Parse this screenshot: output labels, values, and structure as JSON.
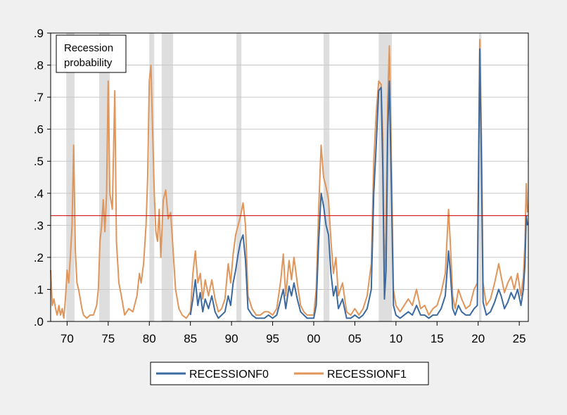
{
  "chart_data": {
    "type": "line",
    "annotation": [
      "Recession",
      "probability"
    ],
    "xlim": [
      1968.0,
      2026.1
    ],
    "ylim": [
      0,
      0.9
    ],
    "x_ticks": [
      1970,
      1975,
      1980,
      1985,
      1990,
      1995,
      2000,
      2005,
      2010,
      2015,
      2020,
      2025
    ],
    "x_tick_labels": [
      "70",
      "75",
      "80",
      "85",
      "90",
      "95",
      "00",
      "05",
      "10",
      "15",
      "20",
      "25"
    ],
    "y_ticks": [
      0,
      0.1,
      0.2,
      0.3,
      0.4,
      0.5,
      0.6,
      0.7,
      0.8,
      0.9
    ],
    "y_tick_labels": [
      ".0",
      ".1",
      ".2",
      ".3",
      ".4",
      ".5",
      ".6",
      ".7",
      ".8",
      ".9"
    ],
    "threshold": {
      "value": 0.33,
      "color": "#cc0000"
    },
    "recession_periods": [
      [
        1969.9,
        1970.9
      ],
      [
        1973.9,
        1975.2
      ],
      [
        1980.0,
        1980.6
      ],
      [
        1981.5,
        1982.9
      ],
      [
        1990.6,
        1991.2
      ],
      [
        2001.2,
        2001.9
      ],
      [
        2007.9,
        2009.5
      ],
      [
        2020.1,
        2020.4
      ]
    ],
    "series": [
      {
        "name": "RECESSIONF0",
        "color": "#3a6aa0",
        "points": [
          [
            1985.0,
            0.02
          ],
          [
            1985.3,
            0.07
          ],
          [
            1985.6,
            0.13
          ],
          [
            1985.9,
            0.05
          ],
          [
            1986.2,
            0.09
          ],
          [
            1986.5,
            0.03
          ],
          [
            1986.8,
            0.07
          ],
          [
            1987.2,
            0.04
          ],
          [
            1987.6,
            0.08
          ],
          [
            1988.0,
            0.03
          ],
          [
            1988.4,
            0.01
          ],
          [
            1988.8,
            0.02
          ],
          [
            1989.2,
            0.03
          ],
          [
            1989.6,
            0.08
          ],
          [
            1989.9,
            0.05
          ],
          [
            1990.2,
            0.12
          ],
          [
            1990.5,
            0.16
          ],
          [
            1990.8,
            0.21
          ],
          [
            1991.1,
            0.25
          ],
          [
            1991.4,
            0.27
          ],
          [
            1991.7,
            0.19
          ],
          [
            1992.0,
            0.04
          ],
          [
            1992.5,
            0.02
          ],
          [
            1993.0,
            0.01
          ],
          [
            1993.5,
            0.01
          ],
          [
            1994.0,
            0.01
          ],
          [
            1994.5,
            0.02
          ],
          [
            1995.0,
            0.01
          ],
          [
            1995.5,
            0.02
          ],
          [
            1996.0,
            0.07
          ],
          [
            1996.3,
            0.1
          ],
          [
            1996.6,
            0.04
          ],
          [
            1997.0,
            0.11
          ],
          [
            1997.3,
            0.08
          ],
          [
            1997.6,
            0.12
          ],
          [
            1998.0,
            0.07
          ],
          [
            1998.4,
            0.03
          ],
          [
            1998.8,
            0.02
          ],
          [
            1999.2,
            0.01
          ],
          [
            1999.6,
            0.01
          ],
          [
            2000.0,
            0.01
          ],
          [
            2000.3,
            0.05
          ],
          [
            2000.6,
            0.25
          ],
          [
            2000.9,
            0.4
          ],
          [
            2001.2,
            0.36
          ],
          [
            2001.5,
            0.3
          ],
          [
            2001.8,
            0.27
          ],
          [
            2002.1,
            0.15
          ],
          [
            2002.4,
            0.08
          ],
          [
            2002.7,
            0.11
          ],
          [
            2003.0,
            0.04
          ],
          [
            2003.5,
            0.07
          ],
          [
            2004.0,
            0.01
          ],
          [
            2004.5,
            0.01
          ],
          [
            2005.0,
            0.02
          ],
          [
            2005.5,
            0.01
          ],
          [
            2006.0,
            0.02
          ],
          [
            2006.5,
            0.04
          ],
          [
            2007.0,
            0.1
          ],
          [
            2007.3,
            0.4
          ],
          [
            2007.6,
            0.55
          ],
          [
            2007.9,
            0.72
          ],
          [
            2008.2,
            0.73
          ],
          [
            2008.4,
            0.48
          ],
          [
            2008.6,
            0.07
          ],
          [
            2008.8,
            0.16
          ],
          [
            2009.0,
            0.6
          ],
          [
            2009.2,
            0.75
          ],
          [
            2009.4,
            0.48
          ],
          [
            2009.7,
            0.05
          ],
          [
            2010.0,
            0.02
          ],
          [
            2010.5,
            0.01
          ],
          [
            2011.0,
            0.02
          ],
          [
            2011.5,
            0.03
          ],
          [
            2012.0,
            0.02
          ],
          [
            2012.5,
            0.05
          ],
          [
            2013.0,
            0.02
          ],
          [
            2013.5,
            0.02
          ],
          [
            2014.0,
            0.01
          ],
          [
            2014.5,
            0.02
          ],
          [
            2015.0,
            0.02
          ],
          [
            2015.5,
            0.04
          ],
          [
            2016.0,
            0.08
          ],
          [
            2016.4,
            0.22
          ],
          [
            2016.6,
            0.16
          ],
          [
            2016.9,
            0.04
          ],
          [
            2017.2,
            0.02
          ],
          [
            2017.6,
            0.05
          ],
          [
            2018.0,
            0.03
          ],
          [
            2018.5,
            0.02
          ],
          [
            2019.0,
            0.02
          ],
          [
            2019.5,
            0.04
          ],
          [
            2019.9,
            0.05
          ],
          [
            2020.2,
            0.85
          ],
          [
            2020.4,
            0.48
          ],
          [
            2020.6,
            0.06
          ],
          [
            2021.0,
            0.02
          ],
          [
            2021.5,
            0.03
          ],
          [
            2022.0,
            0.06
          ],
          [
            2022.5,
            0.1
          ],
          [
            2022.8,
            0.08
          ],
          [
            2023.2,
            0.04
          ],
          [
            2023.6,
            0.06
          ],
          [
            2024.0,
            0.09
          ],
          [
            2024.4,
            0.07
          ],
          [
            2024.8,
            0.1
          ],
          [
            2025.2,
            0.05
          ],
          [
            2025.5,
            0.1
          ],
          [
            2025.7,
            0.18
          ],
          [
            2025.85,
            0.33
          ],
          [
            2026.0,
            0.3
          ]
        ]
      },
      {
        "name": "RECESSIONF1",
        "color": "#e0955a",
        "points": [
          [
            1968.0,
            0.16
          ],
          [
            1968.2,
            0.05
          ],
          [
            1968.4,
            0.07
          ],
          [
            1968.6,
            0.04
          ],
          [
            1968.8,
            0.02
          ],
          [
            1969.0,
            0.05
          ],
          [
            1969.2,
            0.02
          ],
          [
            1969.4,
            0.04
          ],
          [
            1969.6,
            0.01
          ],
          [
            1969.8,
            0.07
          ],
          [
            1970.0,
            0.16
          ],
          [
            1970.2,
            0.12
          ],
          [
            1970.4,
            0.2
          ],
          [
            1970.6,
            0.3
          ],
          [
            1970.8,
            0.55
          ],
          [
            1971.0,
            0.22
          ],
          [
            1971.2,
            0.12
          ],
          [
            1971.4,
            0.1
          ],
          [
            1971.6,
            0.07
          ],
          [
            1971.8,
            0.04
          ],
          [
            1972.0,
            0.02
          ],
          [
            1972.4,
            0.01
          ],
          [
            1972.8,
            0.02
          ],
          [
            1973.2,
            0.02
          ],
          [
            1973.6,
            0.05
          ],
          [
            1973.8,
            0.1
          ],
          [
            1974.0,
            0.25
          ],
          [
            1974.2,
            0.3
          ],
          [
            1974.4,
            0.38
          ],
          [
            1974.6,
            0.28
          ],
          [
            1974.8,
            0.4
          ],
          [
            1975.0,
            0.75
          ],
          [
            1975.2,
            0.4
          ],
          [
            1975.5,
            0.35
          ],
          [
            1975.8,
            0.72
          ],
          [
            1976.0,
            0.25
          ],
          [
            1976.3,
            0.12
          ],
          [
            1976.6,
            0.08
          ],
          [
            1977.0,
            0.02
          ],
          [
            1977.5,
            0.04
          ],
          [
            1978.0,
            0.03
          ],
          [
            1978.5,
            0.08
          ],
          [
            1978.8,
            0.15
          ],
          [
            1979.0,
            0.12
          ],
          [
            1979.3,
            0.18
          ],
          [
            1979.6,
            0.3
          ],
          [
            1979.8,
            0.45
          ],
          [
            1980.0,
            0.75
          ],
          [
            1980.2,
            0.8
          ],
          [
            1980.4,
            0.6
          ],
          [
            1980.6,
            0.4
          ],
          [
            1980.8,
            0.28
          ],
          [
            1981.0,
            0.25
          ],
          [
            1981.2,
            0.35
          ],
          [
            1981.4,
            0.2
          ],
          [
            1981.7,
            0.38
          ],
          [
            1982.0,
            0.41
          ],
          [
            1982.3,
            0.32
          ],
          [
            1982.6,
            0.34
          ],
          [
            1982.9,
            0.22
          ],
          [
            1983.2,
            0.1
          ],
          [
            1983.6,
            0.04
          ],
          [
            1984.0,
            0.02
          ],
          [
            1984.5,
            0.01
          ],
          [
            1985.0,
            0.03
          ],
          [
            1985.3,
            0.15
          ],
          [
            1985.6,
            0.22
          ],
          [
            1985.9,
            0.12
          ],
          [
            1986.2,
            0.15
          ],
          [
            1986.5,
            0.07
          ],
          [
            1986.8,
            0.13
          ],
          [
            1987.2,
            0.08
          ],
          [
            1987.6,
            0.13
          ],
          [
            1988.0,
            0.07
          ],
          [
            1988.4,
            0.03
          ],
          [
            1988.8,
            0.04
          ],
          [
            1989.2,
            0.07
          ],
          [
            1989.6,
            0.18
          ],
          [
            1989.9,
            0.12
          ],
          [
            1990.2,
            0.21
          ],
          [
            1990.5,
            0.27
          ],
          [
            1990.8,
            0.3
          ],
          [
            1991.1,
            0.33
          ],
          [
            1991.4,
            0.37
          ],
          [
            1991.7,
            0.3
          ],
          [
            1992.0,
            0.08
          ],
          [
            1992.5,
            0.04
          ],
          [
            1993.0,
            0.02
          ],
          [
            1993.5,
            0.02
          ],
          [
            1994.0,
            0.03
          ],
          [
            1994.5,
            0.03
          ],
          [
            1995.0,
            0.02
          ],
          [
            1995.5,
            0.04
          ],
          [
            1996.0,
            0.13
          ],
          [
            1996.3,
            0.21
          ],
          [
            1996.6,
            0.08
          ],
          [
            1997.0,
            0.19
          ],
          [
            1997.3,
            0.13
          ],
          [
            1997.6,
            0.2
          ],
          [
            1998.0,
            0.12
          ],
          [
            1998.4,
            0.05
          ],
          [
            1998.8,
            0.03
          ],
          [
            1999.2,
            0.02
          ],
          [
            1999.6,
            0.02
          ],
          [
            2000.0,
            0.02
          ],
          [
            2000.3,
            0.1
          ],
          [
            2000.6,
            0.35
          ],
          [
            2000.9,
            0.55
          ],
          [
            2001.2,
            0.45
          ],
          [
            2001.5,
            0.42
          ],
          [
            2001.8,
            0.38
          ],
          [
            2002.1,
            0.25
          ],
          [
            2002.4,
            0.15
          ],
          [
            2002.7,
            0.2
          ],
          [
            2003.0,
            0.08
          ],
          [
            2003.5,
            0.12
          ],
          [
            2004.0,
            0.03
          ],
          [
            2004.5,
            0.02
          ],
          [
            2005.0,
            0.04
          ],
          [
            2005.5,
            0.02
          ],
          [
            2006.0,
            0.04
          ],
          [
            2006.5,
            0.08
          ],
          [
            2007.0,
            0.18
          ],
          [
            2007.3,
            0.5
          ],
          [
            2007.6,
            0.65
          ],
          [
            2007.9,
            0.75
          ],
          [
            2008.2,
            0.74
          ],
          [
            2008.4,
            0.58
          ],
          [
            2008.6,
            0.14
          ],
          [
            2008.8,
            0.28
          ],
          [
            2009.0,
            0.7
          ],
          [
            2009.2,
            0.86
          ],
          [
            2009.4,
            0.58
          ],
          [
            2009.7,
            0.1
          ],
          [
            2010.0,
            0.05
          ],
          [
            2010.5,
            0.03
          ],
          [
            2011.0,
            0.05
          ],
          [
            2011.5,
            0.07
          ],
          [
            2012.0,
            0.05
          ],
          [
            2012.5,
            0.1
          ],
          [
            2013.0,
            0.04
          ],
          [
            2013.5,
            0.05
          ],
          [
            2014.0,
            0.02
          ],
          [
            2014.5,
            0.04
          ],
          [
            2015.0,
            0.05
          ],
          [
            2015.5,
            0.09
          ],
          [
            2016.0,
            0.15
          ],
          [
            2016.4,
            0.35
          ],
          [
            2016.6,
            0.25
          ],
          [
            2016.9,
            0.08
          ],
          [
            2017.2,
            0.04
          ],
          [
            2017.6,
            0.1
          ],
          [
            2018.0,
            0.07
          ],
          [
            2018.5,
            0.04
          ],
          [
            2019.0,
            0.05
          ],
          [
            2019.5,
            0.1
          ],
          [
            2019.9,
            0.12
          ],
          [
            2020.2,
            0.88
          ],
          [
            2020.4,
            0.58
          ],
          [
            2020.6,
            0.12
          ],
          [
            2021.0,
            0.05
          ],
          [
            2021.5,
            0.07
          ],
          [
            2022.0,
            0.12
          ],
          [
            2022.5,
            0.18
          ],
          [
            2022.8,
            0.14
          ],
          [
            2023.2,
            0.09
          ],
          [
            2023.6,
            0.12
          ],
          [
            2024.0,
            0.14
          ],
          [
            2024.4,
            0.1
          ],
          [
            2024.8,
            0.15
          ],
          [
            2025.2,
            0.08
          ],
          [
            2025.5,
            0.14
          ],
          [
            2025.7,
            0.25
          ],
          [
            2025.85,
            0.43
          ],
          [
            2026.0,
            0.34
          ]
        ]
      }
    ]
  }
}
